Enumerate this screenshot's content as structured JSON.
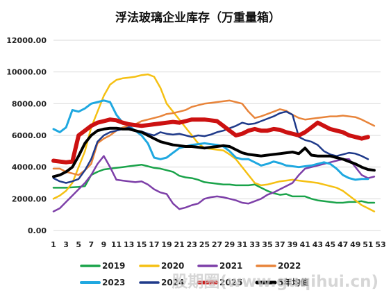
{
  "chart_data": {
    "type": "line",
    "title": "浮法玻璃企业库存（万重量箱）",
    "xlabel": "",
    "ylabel": "",
    "ylim": [
      0,
      12000
    ],
    "yticks": [
      "0.00",
      "2000.00",
      "4000.00",
      "6000.00",
      "8000.00",
      "10000.00",
      "12000.00"
    ],
    "xticks": [
      "1",
      "3",
      "5",
      "7",
      "9",
      "11",
      "13",
      "15",
      "17",
      "19",
      "21",
      "23",
      "25",
      "27",
      "29",
      "31",
      "33",
      "35",
      "37",
      "39",
      "41",
      "43",
      "45",
      "47",
      "49",
      "51",
      "53"
    ],
    "grid": true,
    "legend_position": "bottom",
    "series": [
      {
        "name": "2019",
        "color": "#1aa34a",
        "width": 2.5,
        "x": [
          1,
          3,
          5,
          6,
          7,
          8,
          9,
          10,
          11,
          12,
          13,
          14,
          15,
          16,
          17,
          18,
          19,
          20,
          21,
          22,
          23,
          24,
          25,
          26,
          27,
          28,
          29,
          30,
          31,
          32,
          33,
          34,
          35,
          36,
          37,
          38,
          39,
          40,
          41,
          42,
          43,
          44,
          45,
          46,
          47,
          48,
          49,
          50,
          51,
          52
        ],
        "y": [
          2700,
          2700,
          2750,
          2800,
          3500,
          3700,
          3850,
          3900,
          3950,
          4000,
          4050,
          4100,
          4150,
          4050,
          3950,
          3900,
          3800,
          3700,
          3450,
          3350,
          3300,
          3200,
          3050,
          3000,
          2950,
          2900,
          2900,
          2850,
          2850,
          2850,
          2900,
          2700,
          2500,
          2350,
          2250,
          2300,
          2150,
          2150,
          2150,
          2000,
          1900,
          1850,
          1800,
          1750,
          1750,
          1800,
          1800,
          1850,
          1750,
          1750
        ]
      },
      {
        "name": "2020",
        "color": "#f5c013",
        "width": 2.5,
        "x": [
          1,
          2,
          3,
          4,
          5,
          6,
          7,
          8,
          9,
          10,
          11,
          12,
          13,
          14,
          15,
          16,
          17,
          18,
          19,
          20,
          21,
          22,
          23,
          24,
          25,
          26,
          27,
          28,
          29,
          30,
          31,
          32,
          33,
          34,
          35,
          36,
          37,
          38,
          39,
          40,
          41,
          42,
          43,
          44,
          45,
          46,
          47,
          48,
          49,
          50,
          51,
          52
        ],
        "y": [
          2000,
          2200,
          2500,
          3000,
          4000,
          5000,
          6500,
          7500,
          8500,
          9200,
          9500,
          9600,
          9650,
          9700,
          9800,
          9850,
          9700,
          9000,
          8000,
          7500,
          7000,
          6500,
          6000,
          5500,
          5200,
          5150,
          5100,
          5050,
          4800,
          4500,
          4000,
          3500,
          3000,
          2850,
          2900,
          3000,
          3100,
          3150,
          3200,
          3150,
          3100,
          3050,
          3000,
          2900,
          2800,
          2700,
          2500,
          2200,
          1900,
          1600,
          1400,
          1200
        ]
      },
      {
        "name": "2021",
        "color": "#7d3fa8",
        "width": 2.5,
        "x": [
          1,
          2,
          3,
          4,
          5,
          6,
          7,
          8,
          9,
          10,
          11,
          12,
          13,
          14,
          15,
          16,
          17,
          18,
          19,
          20,
          21,
          22,
          23,
          24,
          25,
          26,
          27,
          28,
          29,
          30,
          31,
          32,
          33,
          34,
          35,
          36,
          37,
          38,
          39,
          40,
          41,
          42,
          43,
          44,
          45,
          46,
          47,
          48,
          49,
          50,
          51,
          52
        ],
        "y": [
          1200,
          1400,
          1800,
          2200,
          2600,
          3000,
          3500,
          4200,
          4700,
          4000,
          3200,
          3150,
          3100,
          3050,
          3100,
          2900,
          2600,
          2400,
          2300,
          1700,
          1350,
          1450,
          1600,
          1700,
          2000,
          2100,
          2150,
          2100,
          2000,
          1900,
          1750,
          1700,
          1850,
          2000,
          2250,
          2400,
          2600,
          2800,
          3000,
          3500,
          3900,
          4000,
          4100,
          4200,
          4300,
          4400,
          4500,
          4500,
          4000,
          3500,
          3300,
          3400
        ]
      },
      {
        "name": "2022",
        "color": "#e8843a",
        "width": 2.5,
        "x": [
          1,
          2,
          3,
          4,
          5,
          6,
          7,
          8,
          9,
          10,
          11,
          12,
          13,
          14,
          15,
          16,
          17,
          18,
          19,
          20,
          21,
          22,
          23,
          24,
          25,
          26,
          27,
          28,
          29,
          30,
          31,
          32,
          33,
          34,
          35,
          36,
          37,
          38,
          39,
          40,
          41,
          42,
          43,
          44,
          45,
          46,
          47,
          48,
          49,
          50,
          51,
          52
        ],
        "y": [
          3900,
          3900,
          3700,
          3600,
          3500,
          3800,
          4200,
          5500,
          5800,
          6000,
          6300,
          6500,
          6600,
          6700,
          6900,
          7000,
          7100,
          7200,
          7350,
          7400,
          7500,
          7600,
          7800,
          7900,
          8000,
          8050,
          8100,
          8150,
          8200,
          8100,
          8000,
          7500,
          7100,
          7200,
          7350,
          7500,
          7650,
          7550,
          7300,
          7100,
          7000,
          7050,
          7100,
          7150,
          7200,
          7200,
          7250,
          7200,
          7150,
          7000,
          6800,
          6600
        ]
      },
      {
        "name": "2023",
        "color": "#1fa8e0",
        "width": 3,
        "x": [
          1,
          2,
          3,
          4,
          5,
          6,
          7,
          8,
          9,
          10,
          11,
          12,
          13,
          14,
          15,
          16,
          17,
          18,
          19,
          20,
          21,
          22,
          23,
          24,
          25,
          26,
          27,
          28,
          29,
          30,
          31,
          32,
          33,
          34,
          35,
          36,
          37,
          38,
          39,
          40,
          41,
          42,
          43,
          44,
          45,
          46,
          47,
          48,
          49,
          50,
          51
        ],
        "y": [
          6400,
          6200,
          6500,
          7600,
          7500,
          7700,
          8000,
          8100,
          8200,
          8100,
          7300,
          6800,
          6600,
          6300,
          6000,
          5500,
          4600,
          4500,
          4600,
          4900,
          5200,
          5300,
          5400,
          5450,
          5500,
          5450,
          5400,
          5300,
          5000,
          4600,
          4500,
          4500,
          4300,
          4100,
          4200,
          4350,
          4250,
          4100,
          4050,
          4000,
          4050,
          4100,
          4200,
          4300,
          4200,
          3900,
          3500,
          3300,
          3200,
          3250,
          3250
        ]
      },
      {
        "name": "2024",
        "color": "#1f3a8a",
        "width": 2.5,
        "x": [
          1,
          2,
          3,
          4,
          5,
          6,
          7,
          8,
          9,
          10,
          11,
          12,
          13,
          14,
          15,
          16,
          17,
          18,
          19,
          20,
          21,
          22,
          23,
          24,
          25,
          26,
          27,
          28,
          29,
          30,
          31,
          32,
          33,
          34,
          35,
          36,
          37,
          38,
          39,
          40,
          41,
          42,
          43,
          44,
          45,
          46,
          47,
          48,
          49,
          50,
          51
        ],
        "y": [
          3300,
          3100,
          3000,
          3100,
          3250,
          3800,
          4500,
          5600,
          6000,
          6200,
          6300,
          6400,
          6500,
          6300,
          6250,
          6100,
          6000,
          6200,
          6100,
          6050,
          6100,
          6000,
          5900,
          6000,
          5950,
          6050,
          6200,
          6300,
          6450,
          6600,
          6800,
          6700,
          6750,
          6900,
          7050,
          7200,
          7400,
          7500,
          7300,
          5900,
          5700,
          5600,
          5400,
          5000,
          4800,
          4700,
          4800,
          4900,
          4850,
          4700,
          4500
        ]
      },
      {
        "name": "2025",
        "color": "#cc1111",
        "width": 6,
        "x": [
          1,
          2,
          3,
          4,
          5,
          6,
          7,
          8,
          9,
          10,
          11,
          12,
          13,
          14,
          15,
          16,
          17,
          18,
          19,
          20,
          21,
          22,
          23,
          24,
          25,
          26,
          27,
          28,
          29,
          30,
          31,
          32,
          33,
          34,
          35,
          36,
          37,
          38,
          39,
          40,
          41,
          42,
          43,
          44,
          45,
          46,
          47,
          48,
          49,
          50,
          51
        ],
        "y": [
          4400,
          4350,
          4300,
          4350,
          6000,
          6300,
          6600,
          6800,
          6900,
          7000,
          6950,
          6800,
          6700,
          6650,
          6600,
          6650,
          6700,
          6750,
          6800,
          6850,
          6800,
          6900,
          7000,
          7000,
          7000,
          6950,
          6900,
          6600,
          6300,
          6000,
          6100,
          6300,
          6400,
          6300,
          6300,
          6400,
          6350,
          6200,
          6100,
          6000,
          6200,
          6500,
          6800,
          6600,
          6400,
          6300,
          6200,
          6000,
          5900,
          5800,
          5900
        ]
      },
      {
        "name": "5年均值",
        "color": "#000000",
        "width": 4,
        "x": [
          1,
          2,
          3,
          4,
          5,
          6,
          7,
          8,
          9,
          10,
          11,
          12,
          13,
          14,
          15,
          16,
          17,
          18,
          19,
          20,
          21,
          22,
          23,
          24,
          25,
          26,
          27,
          28,
          29,
          30,
          31,
          32,
          33,
          34,
          35,
          36,
          37,
          38,
          39,
          40,
          41,
          42,
          43,
          44,
          45,
          46,
          47,
          48,
          49,
          50,
          51,
          52
        ],
        "y": [
          3400,
          3500,
          3700,
          4000,
          4700,
          5500,
          6000,
          6300,
          6400,
          6450,
          6450,
          6400,
          6400,
          6300,
          6200,
          6000,
          5800,
          5600,
          5500,
          5400,
          5350,
          5300,
          5300,
          5250,
          5200,
          5250,
          5300,
          5350,
          5300,
          5100,
          4900,
          4800,
          4750,
          4700,
          4750,
          4800,
          4850,
          4900,
          4950,
          4850,
          5200,
          4750,
          4700,
          4700,
          4700,
          4600,
          4500,
          4350,
          4200,
          4000,
          3850,
          3800
        ]
      }
    ],
    "watermark": "股期圈(www.guqihui.cn)"
  }
}
